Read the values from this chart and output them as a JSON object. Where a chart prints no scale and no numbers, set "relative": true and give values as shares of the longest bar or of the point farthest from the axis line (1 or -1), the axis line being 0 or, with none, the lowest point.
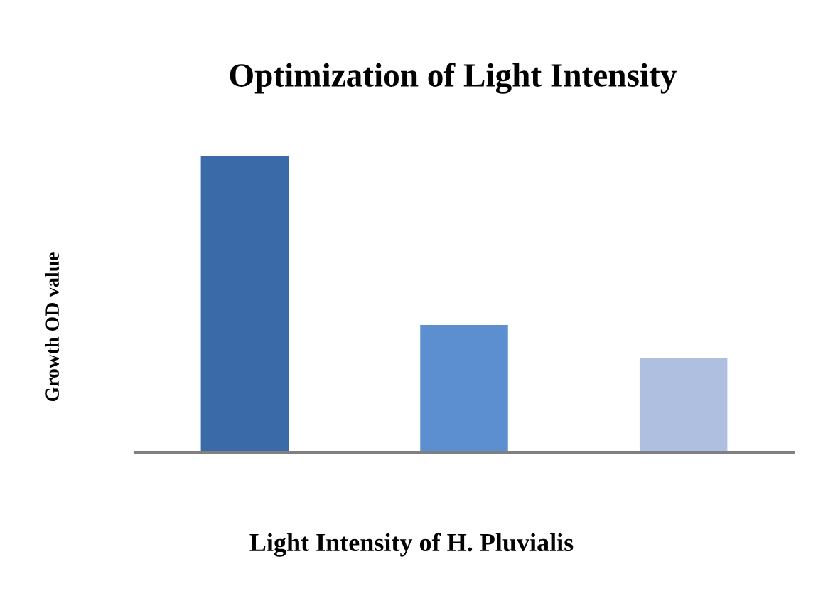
{
  "chart_data": {
    "type": "bar",
    "title": "Optimization of Light Intensity",
    "xlabel": "Light Intensity of H. Pluvialis",
    "ylabel": "Growth OD value",
    "categories": [
      null,
      null,
      null
    ],
    "values": [
      1,
      0.43,
      0.32
    ],
    "colors": [
      "#3a6aa8",
      "#5b8fd0",
      "#aebfe0"
    ],
    "relative": true,
    "grid": false,
    "legend": false
  }
}
